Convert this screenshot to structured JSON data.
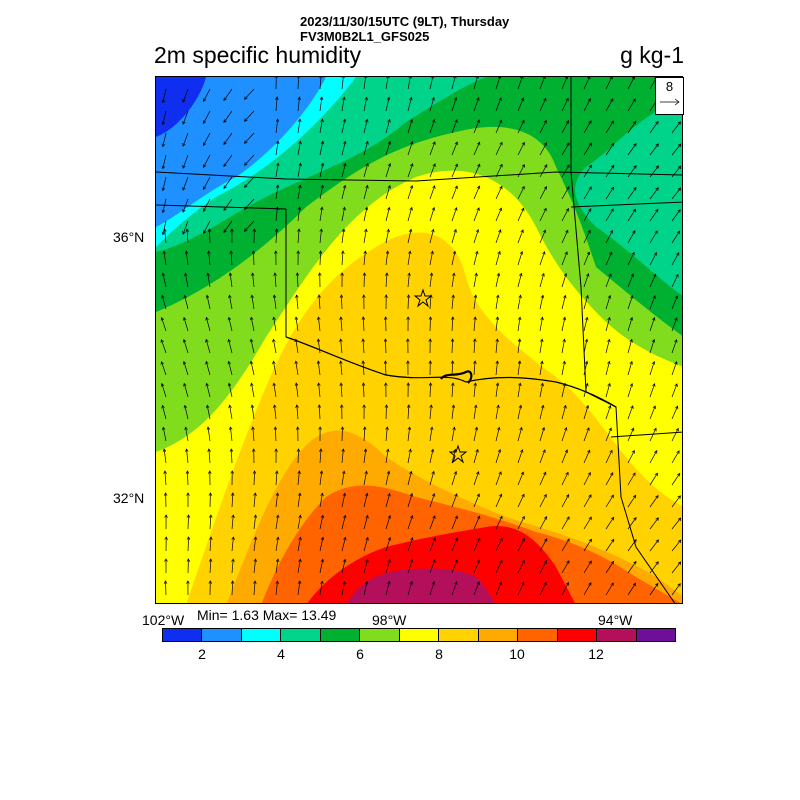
{
  "header": {
    "timestamp": "2023/11/30/15UTC (9LT), Thursday",
    "model": "FV3M0B2L1_GFS025"
  },
  "map": {
    "title": "2m specific humidity",
    "units": "g kg-1",
    "lat_labels": [
      "36°N",
      "32°N"
    ],
    "lon_labels": [
      "102°W",
      "98°W",
      "94°W"
    ],
    "stats": "Min= 1.63 Max= 13.49",
    "reference_vector": "8",
    "markers": [
      "star-marker",
      "star-marker"
    ]
  },
  "colorbar": {
    "colors": [
      "#0f2ef0",
      "#1e90ff",
      "#00ffff",
      "#00d48a",
      "#00b030",
      "#80dc1c",
      "#ffff00",
      "#ffd200",
      "#ffaa00",
      "#ff6400",
      "#ff0000",
      "#b40f5a",
      "#6e0f9a"
    ],
    "labels": [
      "2",
      "4",
      "6",
      "8",
      "10",
      "12"
    ]
  }
}
